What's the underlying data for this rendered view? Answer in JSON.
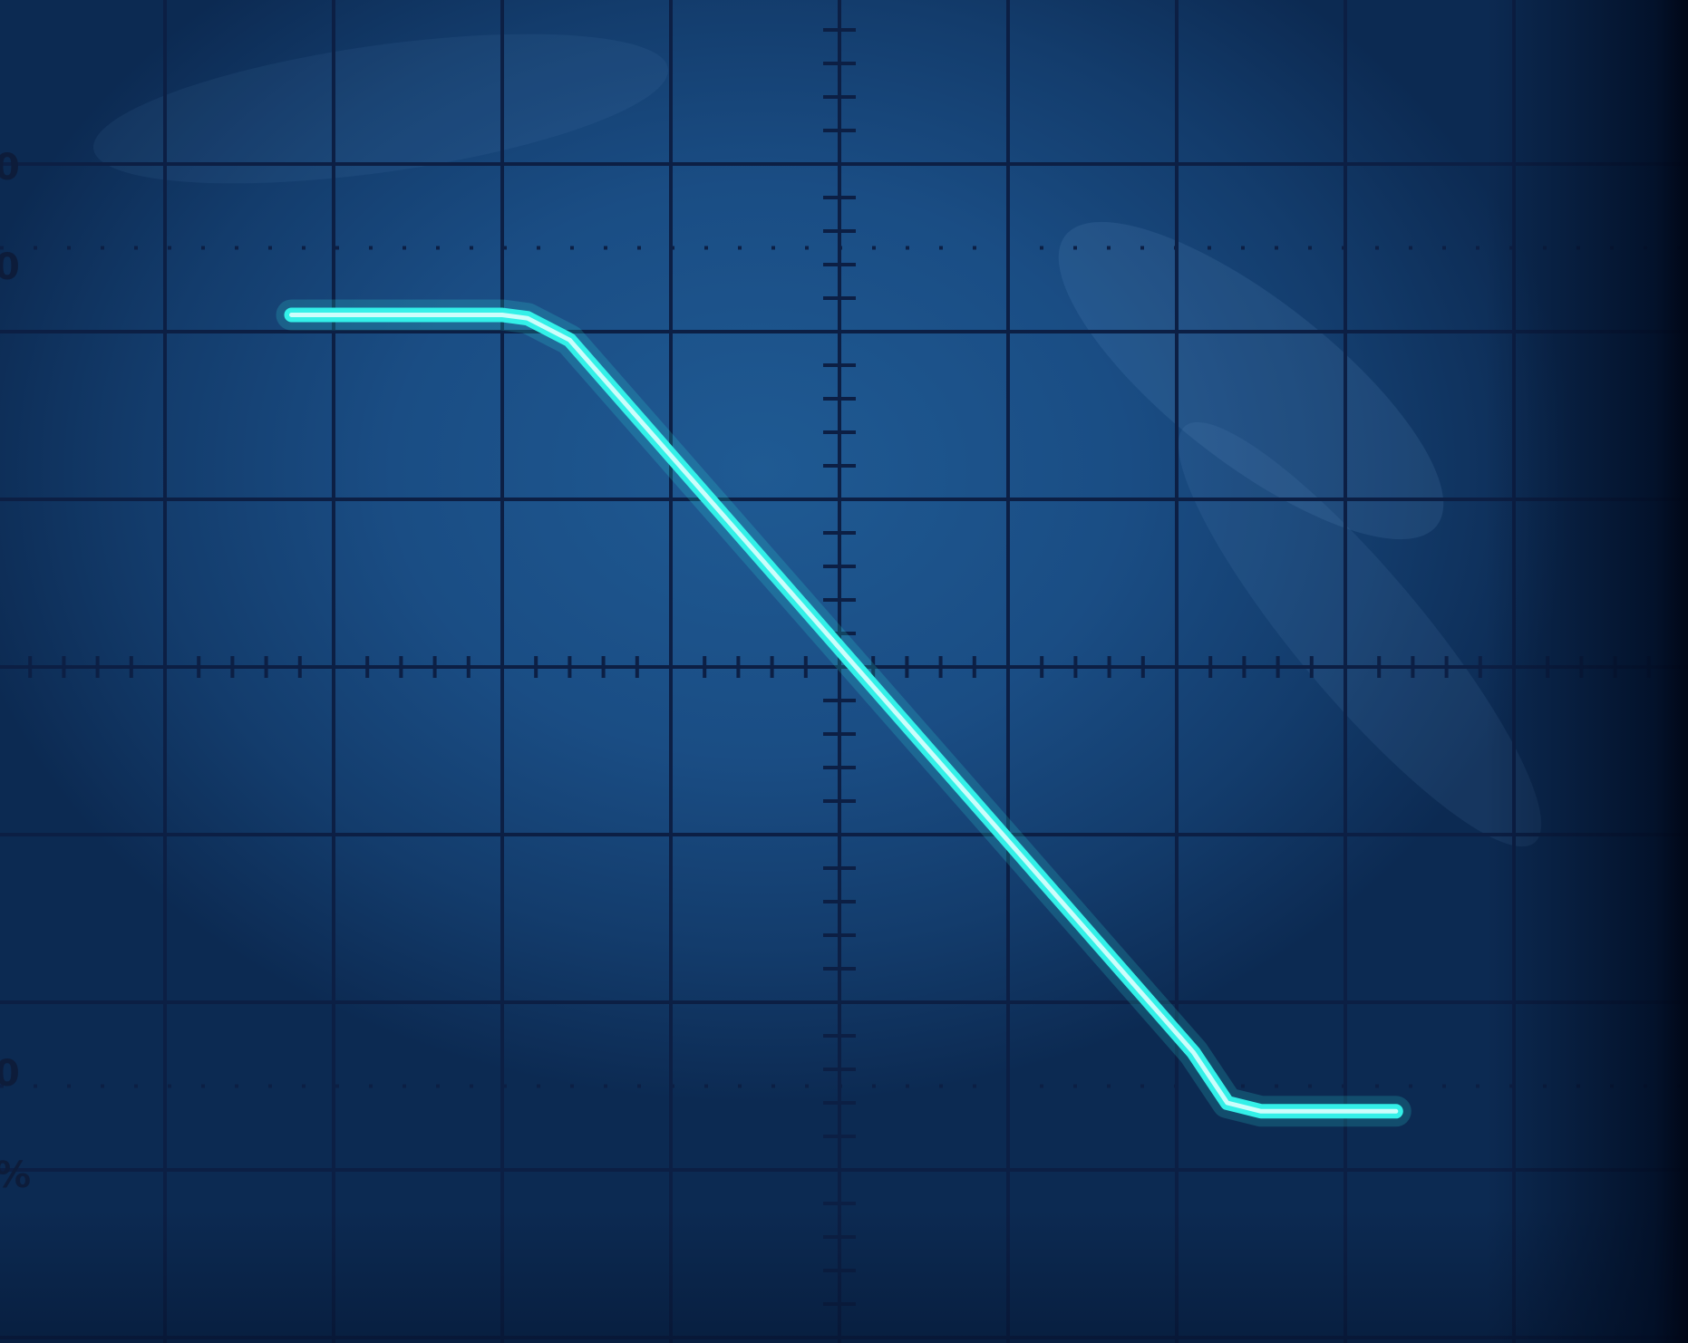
{
  "chart_data": {
    "type": "line",
    "title": "",
    "xlabel": "",
    "ylabel": "",
    "grid": true,
    "graticule": {
      "divisions_x": 10,
      "divisions_y": 8,
      "minor_ticks_per_division": 5,
      "center_axes_ticked": true,
      "dotted_lines_y": [
        2.5,
        -2.5
      ]
    },
    "xlim": [
      -5,
      5
    ],
    "ylim": [
      -4,
      4
    ],
    "edge_labels": {
      "left_0": "0",
      "left_1": "0",
      "left_2": "0",
      "left_pct": "%"
    },
    "series": [
      {
        "color": "#33f0e8",
        "x": [
          -3.25,
          -2.0,
          -1.85,
          -1.6,
          2.1,
          2.3,
          2.5,
          3.3
        ],
        "y": [
          2.1,
          2.1,
          2.08,
          1.95,
          -2.3,
          -2.6,
          -2.65,
          -2.65
        ]
      }
    ]
  }
}
